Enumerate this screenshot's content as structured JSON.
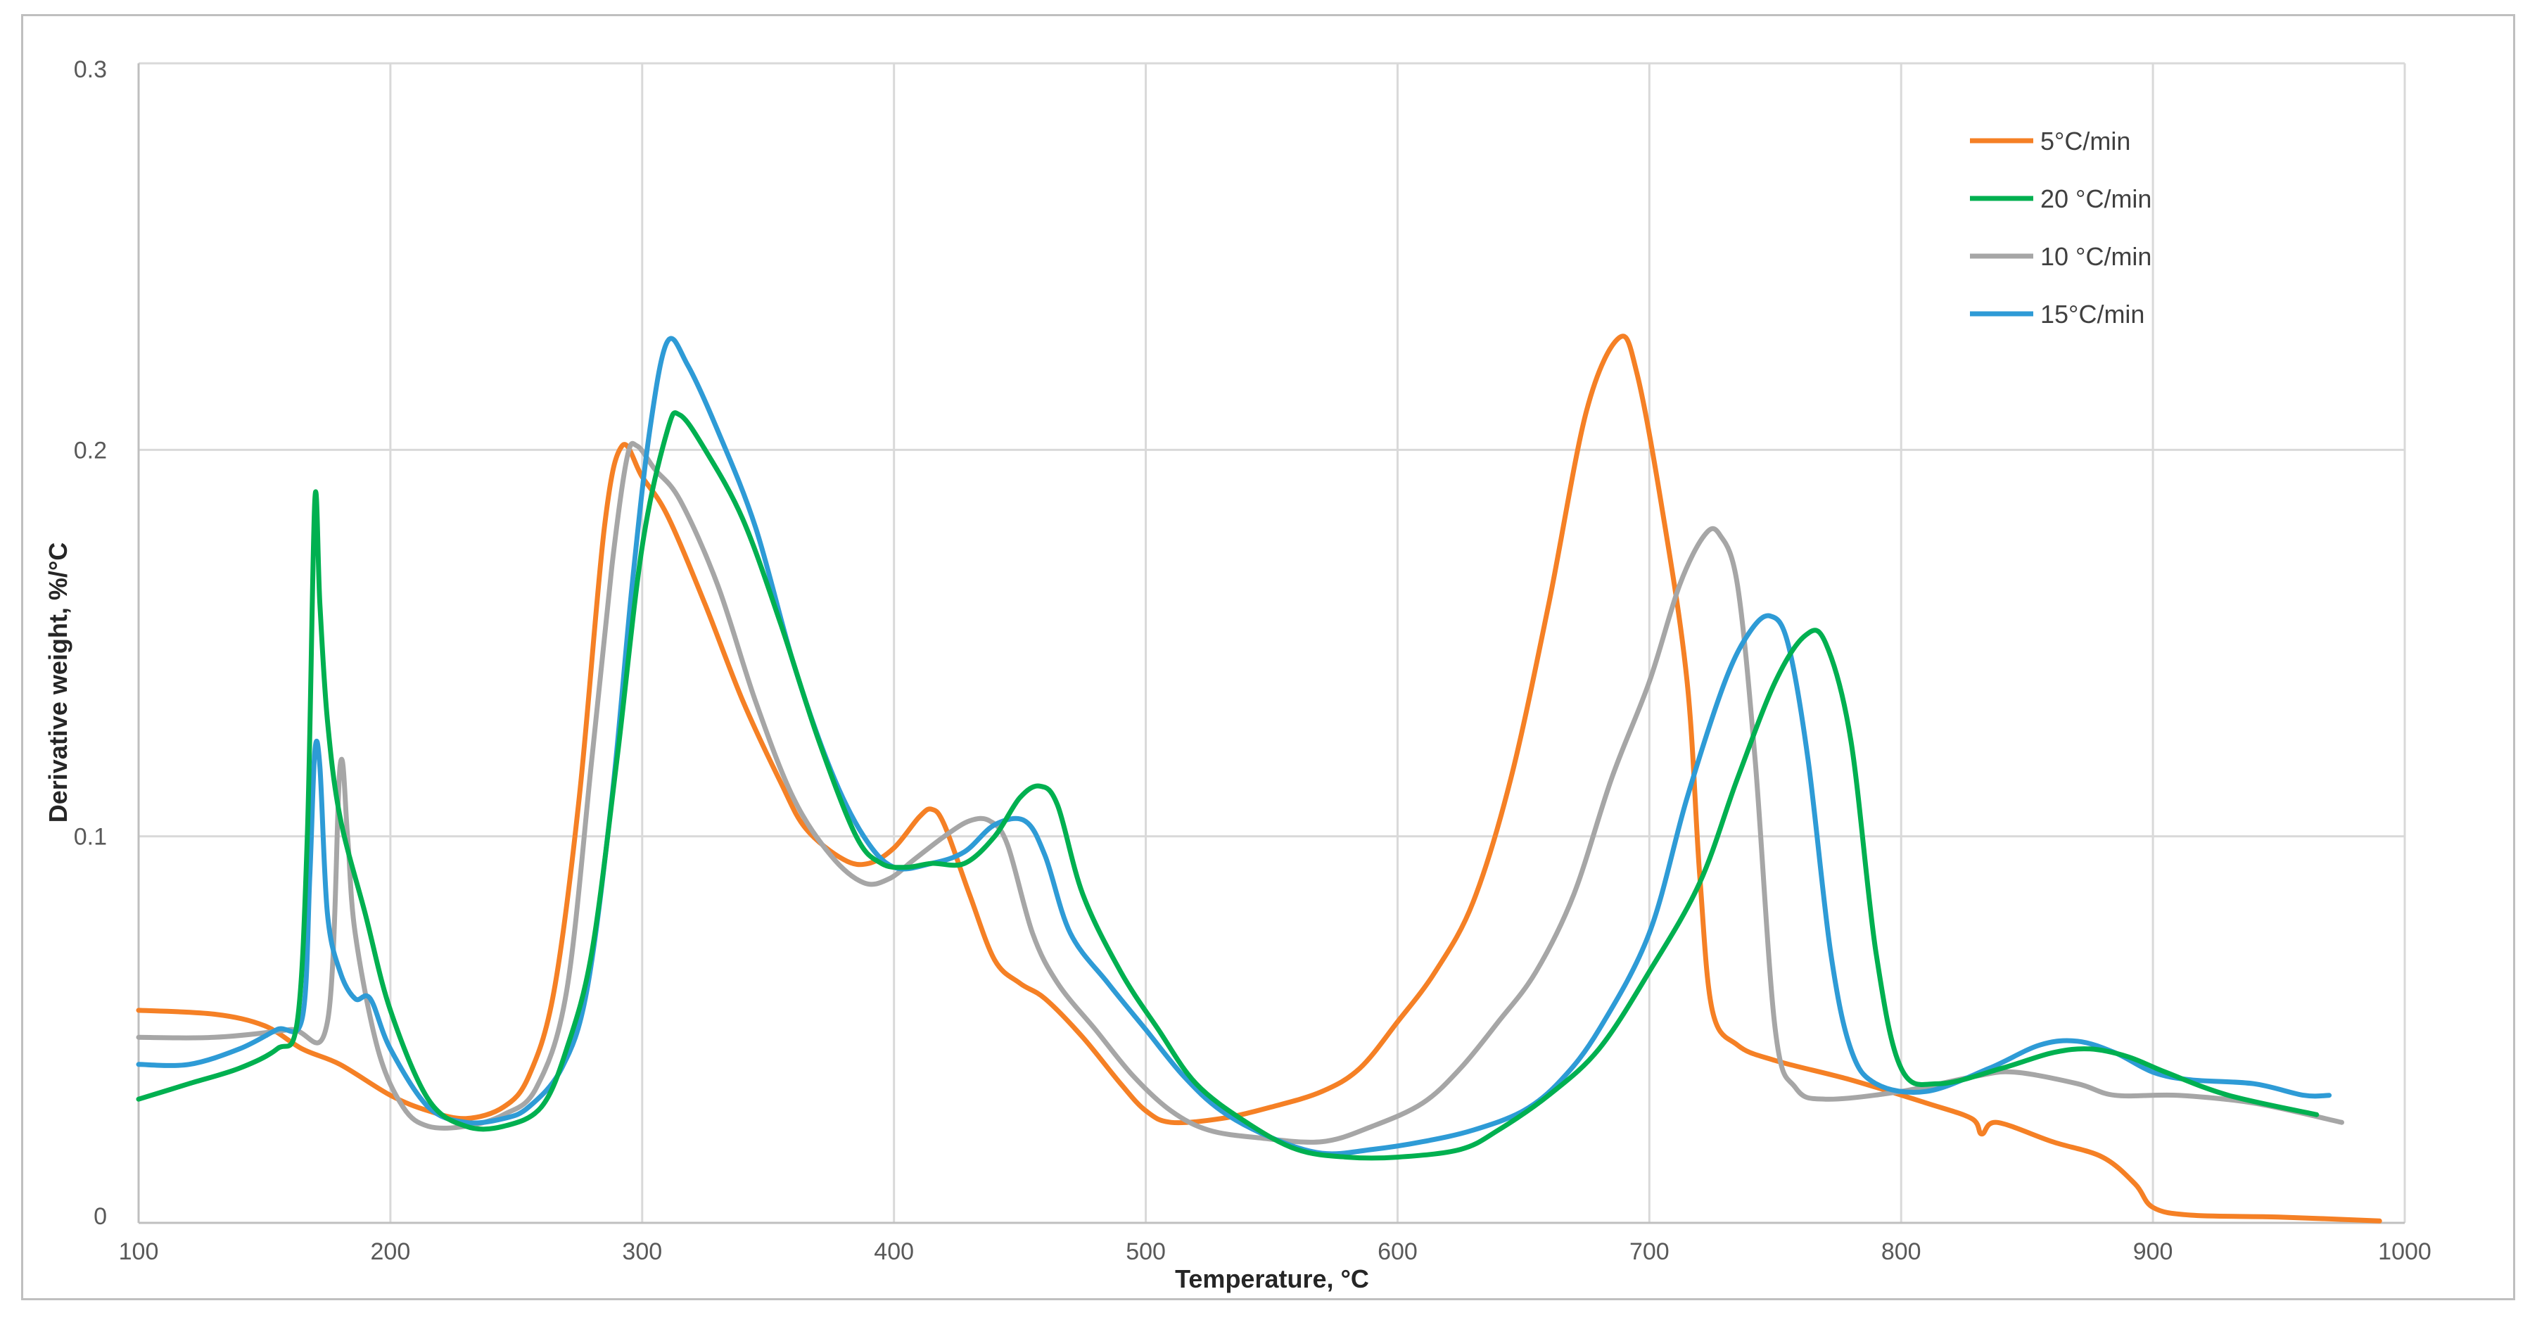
{
  "chart_data": {
    "type": "line",
    "xlabel": "Temperature, °C",
    "ylabel": "Derivative weight, %/°C",
    "xlim": [
      100,
      1000
    ],
    "ylim": [
      0,
      0.3
    ],
    "x_ticks": [
      "100",
      "200",
      "300",
      "400",
      "500",
      "600",
      "700",
      "800",
      "900",
      "1000"
    ],
    "y_ticks": [
      "0",
      "0.1",
      "0.2",
      "0.3"
    ],
    "grid": true,
    "legend_position": "top-right",
    "series": [
      {
        "name": "5°C/min",
        "color": "#F58025",
        "points": [
          [
            100,
            0.055
          ],
          [
            130,
            0.054
          ],
          [
            150,
            0.051
          ],
          [
            165,
            0.045
          ],
          [
            180,
            0.041
          ],
          [
            200,
            0.033
          ],
          [
            215,
            0.029
          ],
          [
            230,
            0.027
          ],
          [
            245,
            0.03
          ],
          [
            255,
            0.038
          ],
          [
            265,
            0.06
          ],
          [
            275,
            0.11
          ],
          [
            285,
            0.18
          ],
          [
            292,
            0.201
          ],
          [
            300,
            0.193
          ],
          [
            310,
            0.183
          ],
          [
            325,
            0.16
          ],
          [
            340,
            0.135
          ],
          [
            355,
            0.114
          ],
          [
            365,
            0.102
          ],
          [
            380,
            0.094
          ],
          [
            390,
            0.093
          ],
          [
            400,
            0.097
          ],
          [
            410,
            0.105
          ],
          [
            415,
            0.107
          ],
          [
            420,
            0.103
          ],
          [
            430,
            0.085
          ],
          [
            440,
            0.068
          ],
          [
            450,
            0.062
          ],
          [
            460,
            0.058
          ],
          [
            475,
            0.048
          ],
          [
            490,
            0.036
          ],
          [
            500,
            0.029
          ],
          [
            510,
            0.026
          ],
          [
            530,
            0.027
          ],
          [
            550,
            0.03
          ],
          [
            570,
            0.034
          ],
          [
            585,
            0.04
          ],
          [
            600,
            0.052
          ],
          [
            615,
            0.065
          ],
          [
            630,
            0.083
          ],
          [
            645,
            0.115
          ],
          [
            660,
            0.16
          ],
          [
            675,
            0.21
          ],
          [
            688,
            0.229
          ],
          [
            695,
            0.22
          ],
          [
            705,
            0.185
          ],
          [
            715,
            0.14
          ],
          [
            720,
            0.09
          ],
          [
            725,
            0.055
          ],
          [
            735,
            0.046
          ],
          [
            750,
            0.042
          ],
          [
            780,
            0.037
          ],
          [
            810,
            0.031
          ],
          [
            828,
            0.027
          ],
          [
            832,
            0.023
          ],
          [
            838,
            0.026
          ],
          [
            860,
            0.021
          ],
          [
            880,
            0.017
          ],
          [
            893,
            0.01
          ],
          [
            900,
            0.004
          ],
          [
            915,
            0.002
          ],
          [
            950,
            0.0015
          ],
          [
            990,
            0.0005
          ]
        ]
      },
      {
        "name": "20 °C/min",
        "color": "#00B050",
        "points": [
          [
            100,
            0.032
          ],
          [
            120,
            0.036
          ],
          [
            140,
            0.04
          ],
          [
            155,
            0.045
          ],
          [
            163,
            0.052
          ],
          [
            167,
            0.1
          ],
          [
            170,
            0.187
          ],
          [
            172,
            0.16
          ],
          [
            175,
            0.13
          ],
          [
            180,
            0.105
          ],
          [
            190,
            0.08
          ],
          [
            200,
            0.055
          ],
          [
            215,
            0.032
          ],
          [
            230,
            0.025
          ],
          [
            245,
            0.025
          ],
          [
            260,
            0.03
          ],
          [
            270,
            0.045
          ],
          [
            280,
            0.07
          ],
          [
            290,
            0.12
          ],
          [
            300,
            0.175
          ],
          [
            310,
            0.205
          ],
          [
            315,
            0.209
          ],
          [
            325,
            0.2
          ],
          [
            340,
            0.182
          ],
          [
            355,
            0.155
          ],
          [
            370,
            0.125
          ],
          [
            385,
            0.1
          ],
          [
            395,
            0.093
          ],
          [
            405,
            0.092
          ],
          [
            415,
            0.093
          ],
          [
            428,
            0.093
          ],
          [
            440,
            0.1
          ],
          [
            450,
            0.11
          ],
          [
            458,
            0.113
          ],
          [
            465,
            0.108
          ],
          [
            475,
            0.085
          ],
          [
            490,
            0.065
          ],
          [
            505,
            0.05
          ],
          [
            520,
            0.036
          ],
          [
            540,
            0.026
          ],
          [
            560,
            0.019
          ],
          [
            580,
            0.017
          ],
          [
            600,
            0.017
          ],
          [
            625,
            0.019
          ],
          [
            640,
            0.024
          ],
          [
            660,
            0.033
          ],
          [
            680,
            0.045
          ],
          [
            700,
            0.065
          ],
          [
            720,
            0.088
          ],
          [
            735,
            0.115
          ],
          [
            750,
            0.14
          ],
          [
            762,
            0.152
          ],
          [
            770,
            0.15
          ],
          [
            780,
            0.125
          ],
          [
            790,
            0.07
          ],
          [
            800,
            0.04
          ],
          [
            815,
            0.036
          ],
          [
            840,
            0.04
          ],
          [
            860,
            0.044
          ],
          [
            875,
            0.045
          ],
          [
            890,
            0.043
          ],
          [
            905,
            0.039
          ],
          [
            930,
            0.033
          ],
          [
            965,
            0.028
          ]
        ]
      },
      {
        "name": "10 °C/min",
        "color": "#A6A6A6",
        "points": [
          [
            100,
            0.048
          ],
          [
            130,
            0.048
          ],
          [
            160,
            0.05
          ],
          [
            175,
            0.052
          ],
          [
            180,
            0.118
          ],
          [
            183,
            0.1
          ],
          [
            186,
            0.075
          ],
          [
            195,
            0.045
          ],
          [
            205,
            0.03
          ],
          [
            215,
            0.025
          ],
          [
            230,
            0.025
          ],
          [
            245,
            0.028
          ],
          [
            258,
            0.035
          ],
          [
            270,
            0.06
          ],
          [
            280,
            0.12
          ],
          [
            288,
            0.17
          ],
          [
            294,
            0.198
          ],
          [
            298,
            0.201
          ],
          [
            305,
            0.195
          ],
          [
            315,
            0.187
          ],
          [
            330,
            0.165
          ],
          [
            345,
            0.135
          ],
          [
            360,
            0.11
          ],
          [
            375,
            0.095
          ],
          [
            388,
            0.088
          ],
          [
            398,
            0.089
          ],
          [
            408,
            0.094
          ],
          [
            420,
            0.1
          ],
          [
            430,
            0.104
          ],
          [
            438,
            0.104
          ],
          [
            445,
            0.098
          ],
          [
            455,
            0.075
          ],
          [
            465,
            0.062
          ],
          [
            480,
            0.05
          ],
          [
            495,
            0.038
          ],
          [
            510,
            0.029
          ],
          [
            525,
            0.024
          ],
          [
            545,
            0.022
          ],
          [
            570,
            0.021
          ],
          [
            590,
            0.025
          ],
          [
            610,
            0.031
          ],
          [
            625,
            0.04
          ],
          [
            640,
            0.052
          ],
          [
            655,
            0.065
          ],
          [
            670,
            0.085
          ],
          [
            685,
            0.115
          ],
          [
            700,
            0.14
          ],
          [
            712,
            0.165
          ],
          [
            722,
            0.178
          ],
          [
            728,
            0.178
          ],
          [
            735,
            0.165
          ],
          [
            742,
            0.12
          ],
          [
            750,
            0.05
          ],
          [
            758,
            0.035
          ],
          [
            770,
            0.032
          ],
          [
            800,
            0.034
          ],
          [
            830,
            0.038
          ],
          [
            845,
            0.039
          ],
          [
            870,
            0.036
          ],
          [
            885,
            0.033
          ],
          [
            910,
            0.033
          ],
          [
            940,
            0.031
          ],
          [
            975,
            0.026
          ]
        ]
      },
      {
        "name": "15°C/min",
        "color": "#2E9BD6",
        "points": [
          [
            100,
            0.041
          ],
          [
            120,
            0.041
          ],
          [
            140,
            0.045
          ],
          [
            155,
            0.05
          ],
          [
            165,
            0.053
          ],
          [
            168,
            0.09
          ],
          [
            170,
            0.122
          ],
          [
            172,
            0.118
          ],
          [
            175,
            0.08
          ],
          [
            180,
            0.065
          ],
          [
            186,
            0.058
          ],
          [
            192,
            0.058
          ],
          [
            200,
            0.045
          ],
          [
            215,
            0.03
          ],
          [
            230,
            0.026
          ],
          [
            245,
            0.027
          ],
          [
            255,
            0.03
          ],
          [
            268,
            0.04
          ],
          [
            278,
            0.06
          ],
          [
            288,
            0.11
          ],
          [
            296,
            0.165
          ],
          [
            303,
            0.205
          ],
          [
            310,
            0.228
          ],
          [
            318,
            0.222
          ],
          [
            330,
            0.205
          ],
          [
            345,
            0.18
          ],
          [
            360,
            0.145
          ],
          [
            375,
            0.117
          ],
          [
            388,
            0.1
          ],
          [
            400,
            0.092
          ],
          [
            415,
            0.093
          ],
          [
            428,
            0.096
          ],
          [
            440,
            0.103
          ],
          [
            452,
            0.104
          ],
          [
            460,
            0.095
          ],
          [
            470,
            0.075
          ],
          [
            485,
            0.062
          ],
          [
            500,
            0.05
          ],
          [
            515,
            0.038
          ],
          [
            530,
            0.029
          ],
          [
            550,
            0.022
          ],
          [
            570,
            0.018
          ],
          [
            590,
            0.019
          ],
          [
            610,
            0.021
          ],
          [
            630,
            0.024
          ],
          [
            650,
            0.029
          ],
          [
            665,
            0.037
          ],
          [
            680,
            0.05
          ],
          [
            700,
            0.075
          ],
          [
            715,
            0.11
          ],
          [
            730,
            0.14
          ],
          [
            740,
            0.153
          ],
          [
            748,
            0.157
          ],
          [
            755,
            0.15
          ],
          [
            763,
            0.12
          ],
          [
            772,
            0.07
          ],
          [
            780,
            0.045
          ],
          [
            790,
            0.036
          ],
          [
            810,
            0.034
          ],
          [
            835,
            0.04
          ],
          [
            855,
            0.046
          ],
          [
            870,
            0.047
          ],
          [
            885,
            0.044
          ],
          [
            900,
            0.039
          ],
          [
            915,
            0.037
          ],
          [
            940,
            0.036
          ],
          [
            960,
            0.033
          ],
          [
            970,
            0.033
          ]
        ]
      }
    ]
  }
}
